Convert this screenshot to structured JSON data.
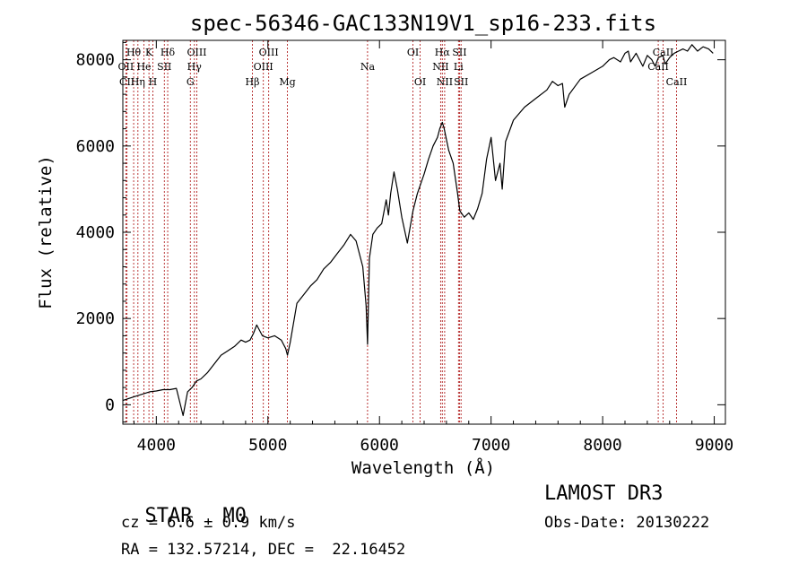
{
  "chart_data": {
    "type": "line",
    "title": "spec-56346-GAC133N19V1_sp16-233.fits",
    "xlabel": "Wavelength (Å)",
    "ylabel": "Flux (relative)",
    "xlim": [
      3700,
      9100
    ],
    "ylim": [
      -450,
      8450
    ],
    "xticks": [
      4000,
      5000,
      6000,
      7000,
      8000,
      9000
    ],
    "yticks": [
      0,
      2000,
      4000,
      6000,
      8000
    ],
    "grid": false,
    "series": [
      {
        "name": "spectrum",
        "x": [
          3700,
          3760,
          3820,
          3880,
          3940,
          4000,
          4060,
          4120,
          4180,
          4240,
          4280,
          4320,
          4360,
          4400,
          4460,
          4520,
          4580,
          4640,
          4700,
          4760,
          4800,
          4840,
          4870,
          4900,
          4950,
          5000,
          5060,
          5120,
          5160,
          5175,
          5200,
          5260,
          5320,
          5380,
          5440,
          5500,
          5560,
          5620,
          5680,
          5740,
          5790,
          5850,
          5880,
          5893,
          5910,
          5940,
          5980,
          6020,
          6060,
          6080,
          6100,
          6130,
          6160,
          6200,
          6250,
          6300,
          6340,
          6400,
          6440,
          6480,
          6520,
          6540,
          6563,
          6580,
          6620,
          6660,
          6700,
          6720,
          6760,
          6800,
          6840,
          6880,
          6920,
          6960,
          7000,
          7040,
          7080,
          7100,
          7130,
          7200,
          7300,
          7400,
          7500,
          7550,
          7600,
          7640,
          7660,
          7700,
          7800,
          7900,
          8000,
          8060,
          8100,
          8160,
          8200,
          8230,
          8250,
          8300,
          8360,
          8400,
          8440,
          8470,
          8500,
          8540,
          8560,
          8600,
          8640,
          8680,
          8720,
          8760,
          8800,
          8850,
          8900,
          8950,
          8990
        ],
        "y": [
          100,
          150,
          200,
          250,
          300,
          320,
          350,
          350,
          380,
          -250,
          300,
          400,
          550,
          600,
          750,
          950,
          1150,
          1250,
          1350,
          1500,
          1450,
          1500,
          1650,
          1850,
          1600,
          1550,
          1600,
          1500,
          1300,
          1150,
          1450,
          2350,
          2550,
          2750,
          2900,
          3150,
          3300,
          3500,
          3700,
          3950,
          3800,
          3200,
          2300,
          1400,
          3400,
          3950,
          4100,
          4200,
          4750,
          4400,
          4900,
          5400,
          5000,
          4350,
          3750,
          4500,
          4900,
          5350,
          5700,
          6000,
          6200,
          6400,
          6550,
          6400,
          5900,
          5600,
          4900,
          4500,
          4350,
          4450,
          4300,
          4550,
          4900,
          5700,
          6200,
          5200,
          5600,
          5000,
          6100,
          6600,
          6900,
          7100,
          7300,
          7500,
          7400,
          7450,
          6900,
          7200,
          7550,
          7700,
          7850,
          8000,
          8050,
          7950,
          8150,
          8200,
          7950,
          8150,
          7850,
          8100,
          8000,
          7850,
          8050,
          8100,
          7900,
          8050,
          8150,
          8200,
          8250,
          8200,
          8350,
          8200,
          8300,
          8250,
          8150
        ]
      }
    ],
    "line_markers": [
      {
        "label": "Hθ",
        "x": 3797,
        "row": 1
      },
      {
        "label": "OII",
        "x": 3727,
        "row": 2
      },
      {
        "label": "CII",
        "x": 3737,
        "row": 3
      },
      {
        "label": "He",
        "x": 3889,
        "row": 2
      },
      {
        "label": "Hη",
        "x": 3835,
        "row": 3
      },
      {
        "label": "K",
        "x": 3934,
        "row": 1
      },
      {
        "label": "H",
        "x": 3969,
        "row": 3
      },
      {
        "label": "SII",
        "x": 4072,
        "row": 2
      },
      {
        "label": "Hδ",
        "x": 4102,
        "row": 1
      },
      {
        "label": "OIII",
        "x": 4363,
        "row": 1
      },
      {
        "label": "Hγ",
        "x": 4341,
        "row": 2
      },
      {
        "label": "G",
        "x": 4305,
        "row": 3
      },
      {
        "label": "Hβ",
        "x": 4861,
        "row": 3
      },
      {
        "label": "OIII",
        "x": 5007,
        "row": 1
      },
      {
        "label": "OIII",
        "x": 4959,
        "row": 2
      },
      {
        "label": "Mg",
        "x": 5175,
        "row": 3
      },
      {
        "label": "Na",
        "x": 5893,
        "row": 2
      },
      {
        "label": "OI",
        "x": 6300,
        "row": 1
      },
      {
        "label": "OI",
        "x": 6364,
        "row": 3
      },
      {
        "label": "Hα",
        "x": 6563,
        "row": 1
      },
      {
        "label": "NII",
        "x": 6548,
        "row": 2
      },
      {
        "label": "NII",
        "x": 6584,
        "row": 3
      },
      {
        "label": "SII",
        "x": 6717,
        "row": 1
      },
      {
        "label": "Li",
        "x": 6708,
        "row": 2
      },
      {
        "label": "SII",
        "x": 6731,
        "row": 3
      },
      {
        "label": "CaII",
        "x": 8542,
        "row": 1
      },
      {
        "label": "CaII",
        "x": 8498,
        "row": 2
      },
      {
        "label": "CaII",
        "x": 8662,
        "row": 3
      }
    ]
  },
  "info": {
    "class_label": "STAR",
    "subclass_label": "M0",
    "survey_label": "LAMOST DR3",
    "cz_text": "cz = 6.6 ± 0.9 km/s",
    "obs_date_text": "Obs-Date: 20130222",
    "coords_text": "RA = 132.57214, DEC =  22.16452"
  },
  "colors": {
    "line_marker": "#b22222",
    "spectrum": "#000000"
  }
}
